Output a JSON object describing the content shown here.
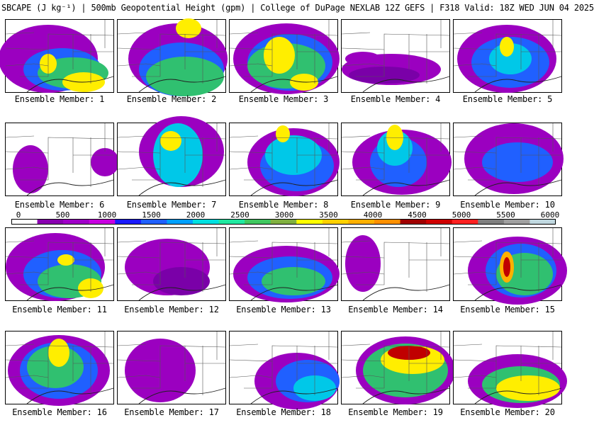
{
  "title": "SBCAPE (J kg⁻¹) | 500mb Geopotential Height (gpm) | College of DuPage NEXLAB 12Z GEFS | F318 Valid: 18Z WED JUN 04 2025",
  "colorbar": {
    "tick_labels": [
      "0",
      "500",
      "1000",
      "1500",
      "2000",
      "2500",
      "3000",
      "3500",
      "4000",
      "4500",
      "5000",
      "5500",
      "6000"
    ],
    "colors": [
      "#ffffff",
      "#8a00b0",
      "#a000c8",
      "#c800e0",
      "#1a1aff",
      "#2060ff",
      "#00a0ff",
      "#00e0e0",
      "#20e8a0",
      "#40c860",
      "#80b040",
      "#ffff00",
      "#ffd000",
      "#ffb000",
      "#ff9000",
      "#a00000",
      "#d00000",
      "#ff2020",
      "#808080",
      "#a0a0a0",
      "#c0d8e0"
    ]
  },
  "members": [
    {
      "label": "Ensemble Member: 1"
    },
    {
      "label": "Ensemble Member: 2"
    },
    {
      "label": "Ensemble Member: 3"
    },
    {
      "label": "Ensemble Member: 4"
    },
    {
      "label": "Ensemble Member: 5"
    },
    {
      "label": "Ensemble Member: 6"
    },
    {
      "label": "Ensemble Member: 7"
    },
    {
      "label": "Ensemble Member: 8"
    },
    {
      "label": "Ensemble Member: 9"
    },
    {
      "label": "Ensemble Member: 10"
    },
    {
      "label": "Ensemble Member: 11"
    },
    {
      "label": "Ensemble Member: 12"
    },
    {
      "label": "Ensemble Member: 13"
    },
    {
      "label": "Ensemble Member: 14"
    },
    {
      "label": "Ensemble Member: 15"
    },
    {
      "label": "Ensemble Member: 16"
    },
    {
      "label": "Ensemble Member: 17"
    },
    {
      "label": "Ensemble Member: 18"
    },
    {
      "label": "Ensemble Member: 19"
    },
    {
      "label": "Ensemble Member: 20"
    }
  ]
}
